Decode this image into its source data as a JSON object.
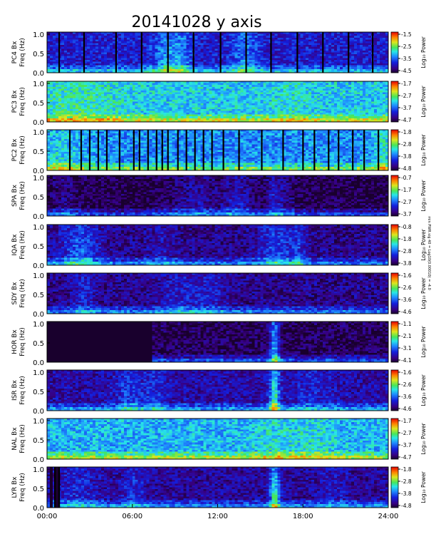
{
  "title": "20141028 y axis",
  "colorbar_label": "Log₁₀ Power",
  "side_note": "min PWR sig 40 = Log10(0.00010) = -4.0",
  "colors": {
    "background": "#ffffff",
    "frame": "#000000"
  },
  "chart_data": {
    "type": "heatmap",
    "x_axis": {
      "range": [
        "00:00",
        "24:00"
      ],
      "ticks": [
        "00:00",
        "06:00",
        "12:00",
        "18:00",
        "24:00"
      ]
    },
    "y_axis": {
      "label": "Freq (Hz)",
      "range": [
        0.0,
        1.0
      ],
      "ticks": [
        "0.0",
        "0.5",
        "1.0"
      ]
    },
    "panels": [
      {
        "station": "PC4 Bx",
        "cbar_ticks": [
          "-1.5",
          "-2.5",
          "-3.5",
          "-4.5"
        ],
        "base": 0.22,
        "gap_hours": [
          0.85,
          2.6,
          4.85,
          6.65,
          8.5,
          10.3,
          12.2,
          14.0,
          15.75,
          17.6,
          19.4,
          21.2,
          22.9
        ],
        "data_gaps": [],
        "bursts": [
          {
            "t": 8.3,
            "w": 0.9,
            "a": 0.22
          },
          {
            "t": 9.4,
            "w": 0.7,
            "a": 0.18
          },
          {
            "t": 13.8,
            "w": 0.9,
            "a": 0.18
          }
        ]
      },
      {
        "station": "PC3 Bx",
        "cbar_ticks": [
          "-1.7",
          "-2.7",
          "-3.7",
          "-4.7"
        ],
        "base": 0.48,
        "gap_hours": [],
        "data_gaps": [],
        "bursts": [
          {
            "t": 2.0,
            "w": 3.5,
            "a": 0.1
          },
          {
            "t": 17.2,
            "w": 1.5,
            "a": 0.05
          }
        ]
      },
      {
        "station": "PC2 Bx",
        "cbar_ticks": [
          "-1.8",
          "-2.8",
          "-3.8",
          "-4.8"
        ],
        "base": 0.4,
        "gap_hours": [
          1.6,
          2.4,
          3.0,
          3.6,
          4.2,
          5.1,
          6.1,
          6.5,
          7.1,
          7.7,
          8.1,
          8.5,
          9.2,
          9.8,
          10.4,
          11.0,
          11.6,
          12.4,
          13.5,
          15.1,
          16.6,
          18.0,
          18.8,
          19.8,
          20.5,
          21.5,
          22.3,
          23.3
        ],
        "data_gaps": [],
        "bursts": [
          {
            "t": 1.0,
            "w": 1.5,
            "a": 0.12
          },
          {
            "t": 23.5,
            "w": 0.6,
            "a": 0.16
          }
        ]
      },
      {
        "station": "SPA Bx",
        "cbar_ticks": [
          "-0.7",
          "-1.7",
          "-2.7",
          "-3.7"
        ],
        "base": 0.03,
        "gap_hours": [],
        "data_gaps": [],
        "bursts": [
          {
            "t": 1.2,
            "w": 0.8,
            "a": 0.12
          },
          {
            "t": 10.5,
            "w": 2.0,
            "a": 0.15
          },
          {
            "t": 13.4,
            "w": 1.0,
            "a": 0.18
          },
          {
            "t": 15.8,
            "w": 0.5,
            "a": 0.18
          },
          {
            "t": 16.6,
            "w": 0.8,
            "a": 0.12
          }
        ]
      },
      {
        "station": "IQA Bx",
        "cbar_ticks": [
          "-0.8",
          "-1.8",
          "-2.8",
          "-3.8"
        ],
        "base": 0.12,
        "gap_hours": [],
        "data_gaps": [],
        "bursts": [
          {
            "t": 2.2,
            "w": 1.3,
            "a": 0.25
          },
          {
            "t": 16.0,
            "w": 1.1,
            "a": 0.22
          },
          {
            "t": 17.6,
            "w": 0.6,
            "a": 0.16
          },
          {
            "t": 8.0,
            "w": 1.0,
            "a": 0.08
          }
        ]
      },
      {
        "station": "SDY Bx",
        "cbar_ticks": [
          "-1.6",
          "-2.6",
          "-3.6",
          "-4.6"
        ],
        "base": 0.12,
        "gap_hours": [],
        "data_gaps": [],
        "bursts": [
          {
            "t": 2.5,
            "w": 0.8,
            "a": 0.14
          },
          {
            "t": 9.3,
            "w": 1.5,
            "a": 0.12
          },
          {
            "t": 11.5,
            "w": 1.2,
            "a": 0.1
          }
        ]
      },
      {
        "station": "HOR Bx",
        "cbar_ticks": [
          "-1.1",
          "-2.1",
          "-3.1",
          "-4.1"
        ],
        "base": 0.05,
        "gap_hours": [],
        "data_gaps": [
          [
            0.0,
            7.25
          ]
        ],
        "bursts": [
          {
            "t": 15.9,
            "w": 0.35,
            "a": 0.45
          }
        ]
      },
      {
        "station": "ISR Bx",
        "cbar_ticks": [
          "-1.6",
          "-2.6",
          "-3.6",
          "-4.6"
        ],
        "base": 0.16,
        "gap_hours": [],
        "data_gaps": [],
        "bursts": [
          {
            "t": 5.7,
            "w": 1.0,
            "a": 0.15
          },
          {
            "t": 7.6,
            "w": 0.8,
            "a": 0.12
          },
          {
            "t": 15.9,
            "w": 0.35,
            "a": 0.45
          },
          {
            "t": 18.5,
            "w": 1.5,
            "a": 0.08
          }
        ]
      },
      {
        "station": "NAL Bx",
        "cbar_ticks": [
          "-1.7",
          "-2.7",
          "-3.7",
          "-4.7"
        ],
        "base": 0.45,
        "gap_hours": [],
        "data_gaps": [],
        "bursts": [
          {
            "t": 15.9,
            "w": 1.5,
            "a": 0.08
          },
          {
            "t": 18.8,
            "w": 1.5,
            "a": 0.08
          }
        ]
      },
      {
        "station": "LYR Bx",
        "cbar_ticks": [
          "-1.8",
          "-2.8",
          "-3.8",
          "-4.8"
        ],
        "base": 0.14,
        "gap_hours": [
          0.55,
          0.85
        ],
        "data_gaps": [
          [
            0.15,
            0.3
          ],
          [
            0.55,
            0.75
          ]
        ],
        "bursts": [
          {
            "t": 2.0,
            "w": 1.5,
            "a": 0.12
          },
          {
            "t": 6.0,
            "w": 0.8,
            "a": 0.14
          },
          {
            "t": 15.9,
            "w": 0.35,
            "a": 0.45
          },
          {
            "t": 20.0,
            "w": 1.0,
            "a": 0.08
          }
        ]
      }
    ]
  }
}
